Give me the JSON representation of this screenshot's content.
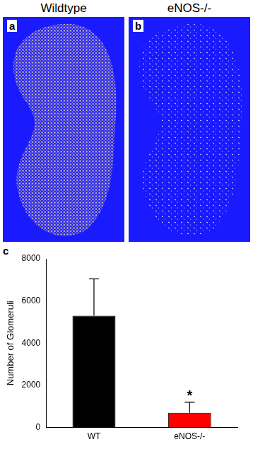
{
  "panels": [
    {
      "label": "a",
      "title": "Wildtype"
    },
    {
      "label": "b",
      "title": "eNOS-/-"
    }
  ],
  "chart_data": {
    "label": "c",
    "type": "bar",
    "categories": [
      "WT",
      "eNOS-/-"
    ],
    "values": [
      5300,
      700
    ],
    "errors": [
      1750,
      500
    ],
    "colors": [
      "#000000",
      "#ff0000"
    ],
    "y_label": "Number of Glomeruli",
    "ylim": [
      0,
      8000
    ],
    "yticks": [
      0,
      2000,
      4000,
      6000,
      8000
    ],
    "grid": false,
    "annotations": [
      {
        "category": "eNOS-/-",
        "text": "*"
      }
    ]
  }
}
